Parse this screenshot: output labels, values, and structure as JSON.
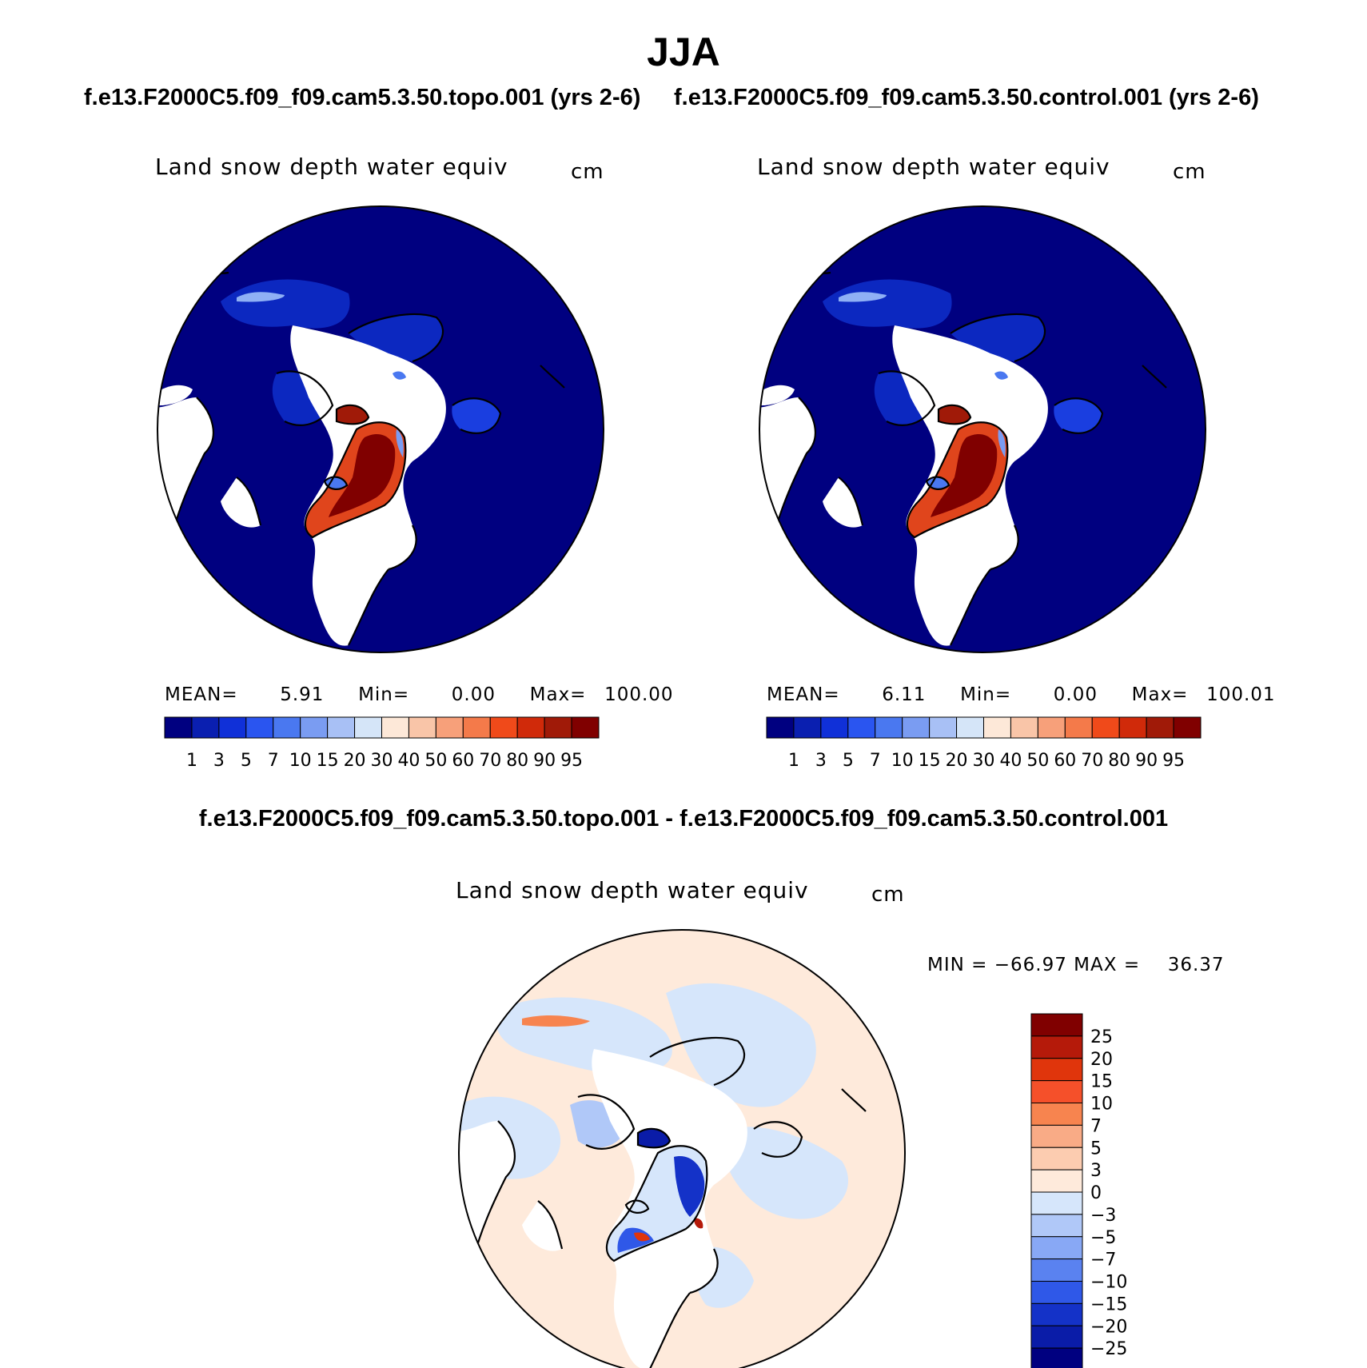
{
  "season_title": "JJA",
  "panels": {
    "left": {
      "case_title": "f.e13.F2000C5.f09_f09.cam5.3.50.topo.001 (yrs 2-6)",
      "variable": "Land snow depth water equiv",
      "units": "cm",
      "mean_label": "MEAN=",
      "mean_value": "5.91",
      "min_label": "Min=",
      "min_value": "0.00",
      "max_label": "Max=",
      "max_value": "100.00"
    },
    "right": {
      "case_title": "f.e13.F2000C5.f09_f09.cam5.3.50.control.001 (yrs 2-6)",
      "variable": "Land snow depth water equiv",
      "units": "cm",
      "mean_label": "MEAN=",
      "mean_value": "6.11",
      "min_label": "Min=",
      "min_value": "0.00",
      "max_label": "Max=",
      "max_value": "100.01"
    },
    "diff": {
      "case_title": "f.e13.F2000C5.f09_f09.cam5.3.50.topo.001 - f.e13.F2000C5.f09_f09.cam5.3.50.control.001",
      "variable": "Land snow depth water equiv",
      "units": "cm",
      "min_label": "MIN =",
      "min_value": "−66.97",
      "max_label": "MAX =",
      "max_value": "36.37"
    }
  },
  "colorbar_abs": {
    "labels": [
      "1",
      "3",
      "5",
      "7",
      "10",
      "15",
      "20",
      "30",
      "40",
      "50",
      "60",
      "70",
      "80",
      "90",
      "95"
    ],
    "colors": [
      "#000080",
      "#0a1fb0",
      "#1030d8",
      "#2a55f0",
      "#4a78f0",
      "#7a9cf2",
      "#a8c0f5",
      "#d5e5f8",
      "#fde8d8",
      "#f9c5a8",
      "#f7a07a",
      "#f47a4a",
      "#f04a1a",
      "#d02a0a",
      "#a01a08",
      "#800000"
    ]
  },
  "colorbar_diff": {
    "labels": [
      "25",
      "20",
      "15",
      "10",
      "7",
      "5",
      "3",
      "0",
      "−3",
      "−5",
      "−7",
      "−10",
      "−15",
      "−20",
      "−25"
    ],
    "colors": [
      "#800000",
      "#b51a0a",
      "#e0350c",
      "#f5502a",
      "#f7844f",
      "#f9ab86",
      "#fcccb0",
      "#feeadb",
      "#d6e6fb",
      "#b0c8f8",
      "#88a8f5",
      "#5a82f0",
      "#2f58e8",
      "#1432c8",
      "#0a1ca8",
      "#000080"
    ]
  },
  "chart_data": [
    {
      "type": "heatmap",
      "title": "Land snow depth water equiv",
      "units": "cm",
      "projection": "north polar stereographic",
      "stats": {
        "mean": 5.91,
        "min": 0.0,
        "max": 100.0
      },
      "contour_levels": [
        1,
        3,
        5,
        7,
        10,
        15,
        20,
        30,
        40,
        50,
        60,
        70,
        80,
        90,
        95
      ]
    },
    {
      "type": "heatmap",
      "title": "Land snow depth water equiv",
      "units": "cm",
      "projection": "north polar stereographic",
      "stats": {
        "mean": 6.11,
        "min": 0.0,
        "max": 100.01
      },
      "contour_levels": [
        1,
        3,
        5,
        7,
        10,
        15,
        20,
        30,
        40,
        50,
        60,
        70,
        80,
        90,
        95
      ]
    },
    {
      "type": "heatmap",
      "title": "Land snow depth water equiv",
      "units": "cm",
      "projection": "north polar stereographic",
      "stats": {
        "min": -66.97,
        "max": 36.37
      },
      "contour_levels": [
        -25,
        -20,
        -15,
        -10,
        -7,
        -5,
        -3,
        0,
        3,
        5,
        7,
        10,
        15,
        20,
        25
      ]
    }
  ]
}
